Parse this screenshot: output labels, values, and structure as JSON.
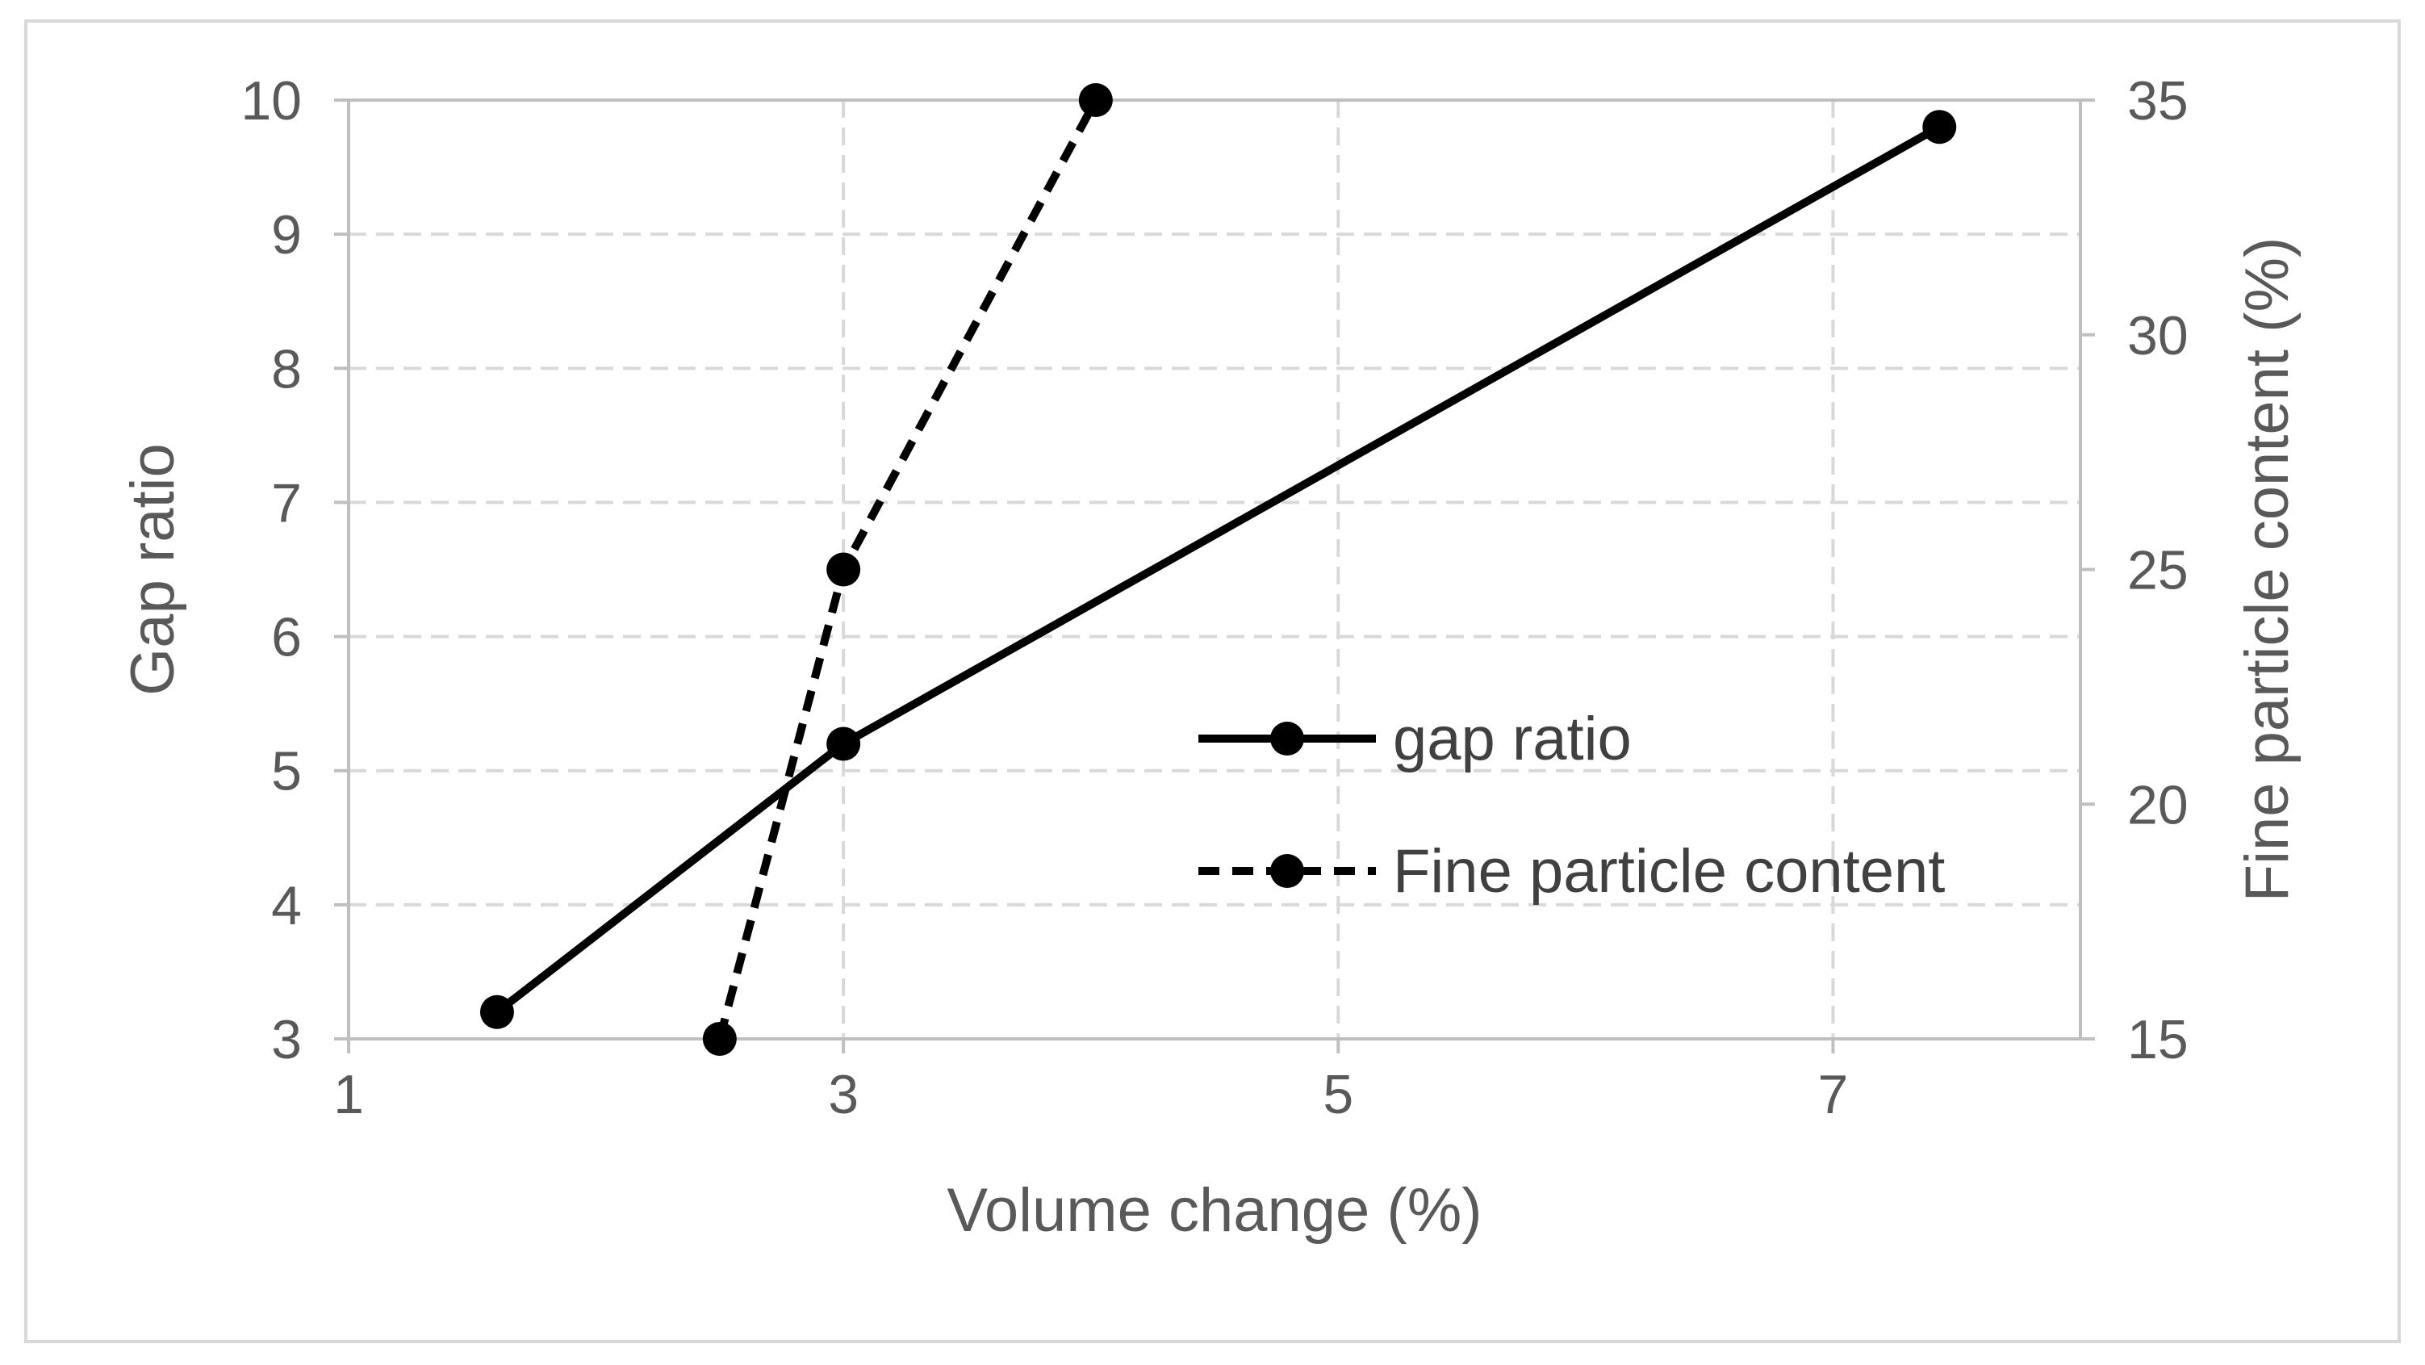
{
  "chart_data": {
    "type": "scatter",
    "title": "",
    "xlabel": "Volume change (%)",
    "ylabel": "Gap ratio",
    "y2label": "Fine particle content (%)",
    "xlim": [
      1,
      8
    ],
    "ylim": [
      3,
      10
    ],
    "y2lim": [
      15,
      35
    ],
    "x_ticks": [
      1,
      3,
      5,
      7
    ],
    "y_ticks": [
      3,
      4,
      5,
      6,
      7,
      8,
      9,
      10
    ],
    "y2_ticks": [
      15,
      20,
      25,
      30,
      35
    ],
    "grid": true,
    "legend_position": "center-right",
    "series": [
      {
        "name": "gap ratio",
        "axis": "left",
        "line_style": "solid",
        "color": "#000000",
        "x": [
          1.6,
          3.0,
          7.43
        ],
        "y": [
          3.2,
          5.2,
          9.8
        ]
      },
      {
        "name": "Fine particle content",
        "axis": "right",
        "line_style": "dashed",
        "color": "#000000",
        "x": [
          2.5,
          3.0,
          4.02
        ],
        "y": [
          15,
          25,
          35
        ]
      }
    ]
  }
}
